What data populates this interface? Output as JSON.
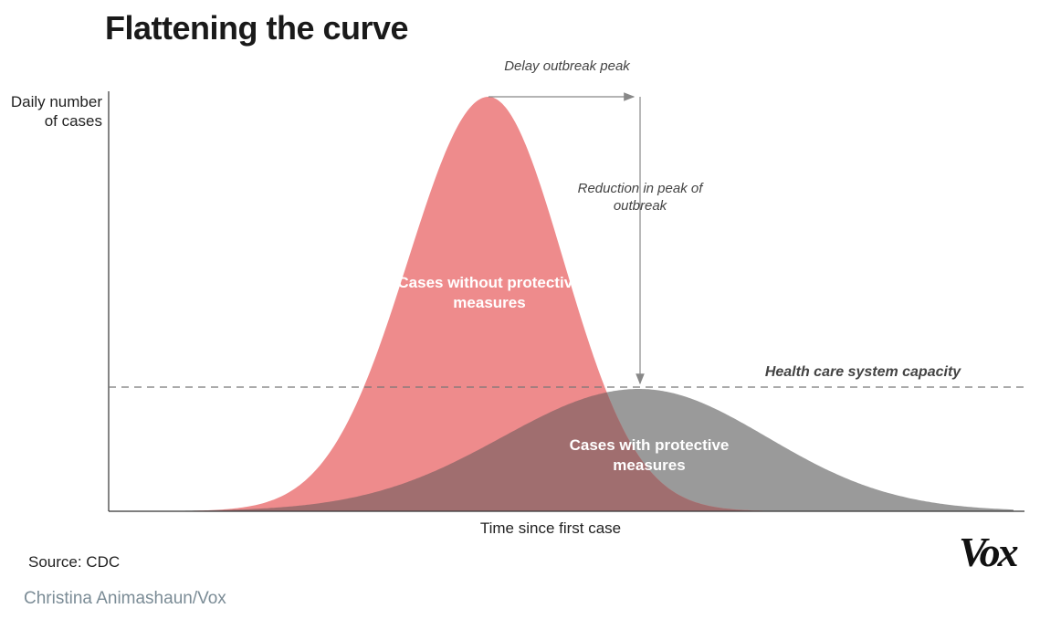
{
  "title": "Flattening the curve",
  "y_axis_label": "Daily number of cases",
  "x_axis_label": "Time since first case",
  "annotations": {
    "delay": "Delay outbreak peak",
    "reduction": "Reduction in peak of outbreak",
    "capacity": "Health care system capacity"
  },
  "curves": {
    "without": {
      "label": "Cases without protective measures",
      "color": "#ee8b8c"
    },
    "with": {
      "label": "Cases with protective measures",
      "color": "#9a9a9a",
      "overlap_color": "#a06e6f"
    }
  },
  "source": "Source: CDC",
  "credit": "Christina Animashaun/Vox",
  "logo": "Vox",
  "colors": {
    "axis": "#333333",
    "dashed_line": "#777777",
    "arrow": "#888888"
  }
}
